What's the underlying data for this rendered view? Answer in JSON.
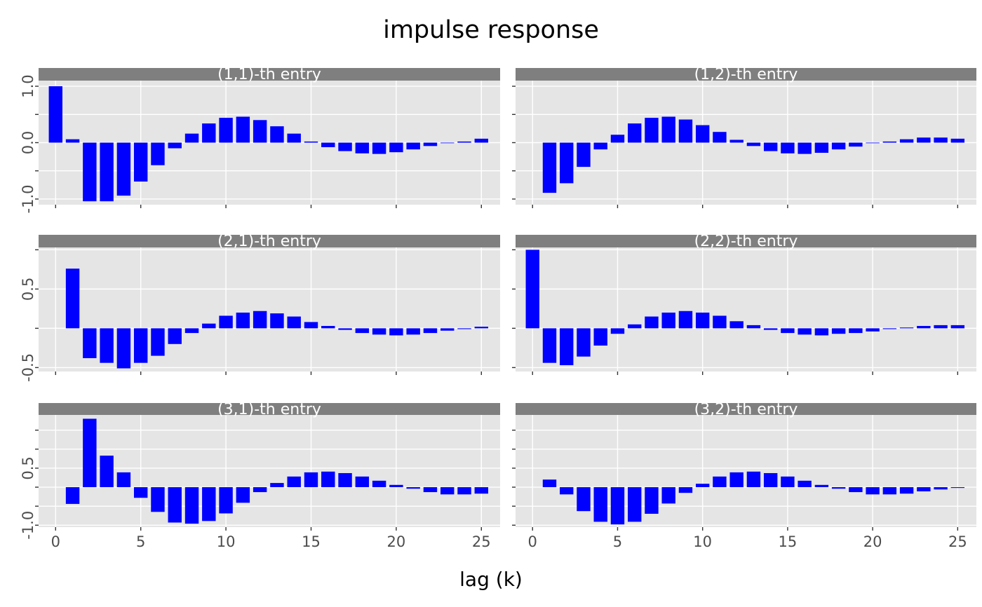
{
  "title": "impulse response",
  "x_label": "lag (k)",
  "chart_data": [
    {
      "type": "bar",
      "title": "(1,1)-th entry",
      "color": "#0000ff",
      "x": [
        0,
        1,
        2,
        3,
        4,
        5,
        6,
        7,
        8,
        9,
        10,
        11,
        12,
        13,
        14,
        15,
        16,
        17,
        18,
        19,
        20,
        21,
        22,
        23,
        24,
        25
      ],
      "values": [
        1.0,
        0.06,
        -1.04,
        -1.04,
        -0.94,
        -0.69,
        -0.4,
        -0.1,
        0.16,
        0.34,
        0.44,
        0.46,
        0.4,
        0.29,
        0.16,
        0.02,
        -0.08,
        -0.15,
        -0.19,
        -0.2,
        -0.17,
        -0.12,
        -0.06,
        -0.01,
        0.02,
        0.07
      ],
      "xlim": [
        -1,
        26.1
      ],
      "minor_xticks": [
        0,
        5,
        10,
        15,
        20,
        25
      ],
      "ylim": [
        -1.1,
        1.1
      ],
      "yticks": [
        {
          "value": -1,
          "label": "-1.0"
        },
        {
          "value": 0,
          "label": "0.0"
        },
        {
          "value": 1,
          "label": "1.0"
        }
      ],
      "minor_yticks": [
        -0.5,
        0.5
      ]
    },
    {
      "type": "bar",
      "title": "(1,2)-th entry",
      "color": "#0000ff",
      "x": [
        0,
        1,
        2,
        3,
        4,
        5,
        6,
        7,
        8,
        9,
        10,
        11,
        12,
        13,
        14,
        15,
        16,
        17,
        18,
        19,
        20,
        21,
        22,
        23,
        24,
        25
      ],
      "values": [
        0,
        -0.89,
        -0.72,
        -0.43,
        -0.12,
        0.14,
        0.34,
        0.44,
        0.46,
        0.41,
        0.31,
        0.19,
        0.05,
        -0.06,
        -0.15,
        -0.19,
        -0.2,
        -0.18,
        -0.12,
        -0.07,
        -0.01,
        0.02,
        0.06,
        0.09,
        0.09,
        0.07
      ],
      "xlim": [
        -1,
        26.1
      ],
      "minor_xticks": [
        0,
        5,
        10,
        15,
        20,
        25
      ],
      "ylim": [
        -1.1,
        1.1
      ],
      "minor_yticks": [
        -1,
        -0.5,
        0,
        0.5,
        1
      ]
    },
    {
      "type": "bar",
      "title": "(2,1)-th entry",
      "color": "#0000ff",
      "x": [
        0,
        1,
        2,
        3,
        4,
        5,
        6,
        7,
        8,
        9,
        10,
        11,
        12,
        13,
        14,
        15,
        16,
        17,
        18,
        19,
        20,
        21,
        22,
        23,
        24,
        25
      ],
      "values": [
        0,
        0.76,
        -0.38,
        -0.44,
        -0.51,
        -0.44,
        -0.35,
        -0.2,
        -0.06,
        0.06,
        0.16,
        0.2,
        0.22,
        0.19,
        0.15,
        0.08,
        0.03,
        -0.02,
        -0.06,
        -0.08,
        -0.09,
        -0.08,
        -0.06,
        -0.03,
        -0.01,
        0.02
      ],
      "xlim": [
        -1,
        26.1
      ],
      "minor_xticks": [
        0,
        5,
        10,
        15,
        20,
        25
      ],
      "ylim": [
        -0.55,
        1.03
      ],
      "yticks": [
        -0.5,
        0.5
      ],
      "minor_yticks": [
        0,
        1
      ]
    },
    {
      "type": "bar",
      "title": "(2,2)-th entry",
      "color": "#0000ff",
      "x": [
        0,
        1,
        2,
        3,
        4,
        5,
        6,
        7,
        8,
        9,
        10,
        11,
        12,
        13,
        14,
        15,
        16,
        17,
        18,
        19,
        20,
        21,
        22,
        23,
        24,
        25
      ],
      "values": [
        1.0,
        -0.44,
        -0.47,
        -0.36,
        -0.22,
        -0.07,
        0.05,
        0.15,
        0.2,
        0.22,
        0.2,
        0.16,
        0.09,
        0.04,
        -0.02,
        -0.06,
        -0.08,
        -0.09,
        -0.07,
        -0.06,
        -0.04,
        -0.01,
        0.01,
        0.03,
        0.04,
        0.04
      ],
      "xlim": [
        -1,
        26.1
      ],
      "minor_xticks": [
        0,
        5,
        10,
        15,
        20,
        25
      ],
      "ylim": [
        -0.55,
        1.03
      ],
      "minor_yticks": [
        -0.5,
        0,
        0.5,
        1
      ]
    },
    {
      "type": "bar",
      "title": "(3,1)-th entry",
      "color": "#0000ff",
      "x": [
        0,
        1,
        2,
        3,
        4,
        5,
        6,
        7,
        8,
        9,
        10,
        11,
        12,
        13,
        14,
        15,
        16,
        17,
        18,
        19,
        20,
        21,
        22,
        23,
        24,
        25
      ],
      "values": [
        0,
        -0.44,
        1.8,
        0.83,
        0.39,
        -0.28,
        -0.65,
        -0.93,
        -0.96,
        -0.89,
        -0.69,
        -0.41,
        -0.13,
        0.11,
        0.28,
        0.39,
        0.41,
        0.37,
        0.28,
        0.17,
        0.06,
        -0.04,
        -0.13,
        -0.19,
        -0.19,
        -0.17
      ],
      "xlim": [
        -1,
        26.1
      ],
      "xticks": [
        0,
        5,
        10,
        15,
        20,
        25
      ],
      "ylim": [
        -1.05,
        1.9
      ],
      "yticks": [
        {
          "value": -1,
          "label": "-1.0"
        },
        0.5
      ],
      "minor_yticks": [
        -0.5,
        0,
        1,
        1.5
      ]
    },
    {
      "type": "bar",
      "title": "(3,2)-th entry",
      "color": "#0000ff",
      "x": [
        0,
        1,
        2,
        3,
        4,
        5,
        6,
        7,
        8,
        9,
        10,
        11,
        12,
        13,
        14,
        15,
        16,
        17,
        18,
        19,
        20,
        21,
        22,
        23,
        24,
        25
      ],
      "values": [
        0,
        0.2,
        -0.19,
        -0.63,
        -0.91,
        -0.98,
        -0.91,
        -0.7,
        -0.43,
        -0.15,
        0.09,
        0.28,
        0.39,
        0.41,
        0.37,
        0.28,
        0.17,
        0.06,
        -0.04,
        -0.13,
        -0.19,
        -0.19,
        -0.17,
        -0.11,
        -0.06,
        -0.02
      ],
      "xlim": [
        -1,
        26.1
      ],
      "xticks": [
        0,
        5,
        10,
        15,
        20,
        25
      ],
      "ylim": [
        -1.05,
        1.9
      ],
      "minor_yticks": [
        -1,
        -0.5,
        0,
        0.5,
        1,
        1.5
      ]
    }
  ]
}
